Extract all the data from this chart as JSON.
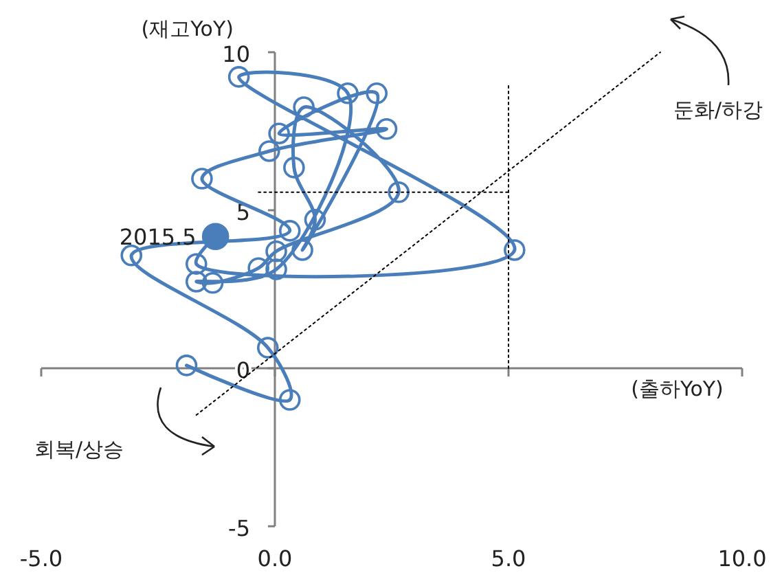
{
  "chart_data": {
    "type": "line",
    "xlabel": "(출하YoY)",
    "ylabel": "(재고YoY)",
    "xlim": [
      -5,
      10
    ],
    "ylim": [
      -5,
      10
    ],
    "xticks": [
      {
        "value": -5,
        "label": "-5.0"
      },
      {
        "value": 0,
        "label": "0.0"
      },
      {
        "value": 5,
        "label": "5.0"
      },
      {
        "value": 10,
        "label": "10.0"
      }
    ],
    "yticks": [
      -5,
      0,
      5,
      10
    ],
    "series": [
      {
        "color": "#4a7ebb",
        "marker": "circle",
        "x": [
          -1.89,
          0.32,
          -0.15,
          -3.07,
          0.32,
          -1.56,
          -0.12,
          2.39,
          0.09,
          2.18,
          0.59,
          0.86,
          0.41,
          0.62,
          2.65,
          0.03,
          -0.35,
          -1.33,
          -1.68,
          0.03,
          1.56,
          -0.77,
          5.13,
          -1.68,
          -1.27
        ],
        "values": [
          0.09,
          -1.0,
          0.65,
          3.57,
          4.35,
          6.0,
          6.87,
          7.57,
          7.43,
          8.7,
          3.74,
          4.7,
          6.35,
          8.26,
          5.57,
          3.7,
          3.17,
          2.7,
          2.74,
          3.13,
          8.7,
          9.22,
          3.74,
          3.3,
          4.17
        ]
      },
      {
        "type": "scatter",
        "color": "#4a7ebb",
        "marker": "circle",
        "x": [
          -1.27
        ],
        "values": [
          4.17
        ]
      },
      {
        "color": "#000000",
        "line_style": "dotted",
        "marker": "none",
        "x": [
          -0.35,
          5.0
        ],
        "values": [
          5.57,
          5.57
        ]
      },
      {
        "color": "#000000",
        "line_style": "dotted",
        "marker": "none",
        "x": [
          5.0,
          5.0
        ],
        "values": [
          0,
          9.0
        ]
      },
      {
        "color": "#000000",
        "line_style": "dotted",
        "marker": "none",
        "x": [
          -1.68,
          8.25
        ],
        "values": [
          -1.48,
          10
        ]
      }
    ],
    "annotations": [
      {
        "text": "2015.5",
        "x": -1.27,
        "y": 4.17
      },
      "둔화/하강",
      "회복/상승"
    ]
  }
}
